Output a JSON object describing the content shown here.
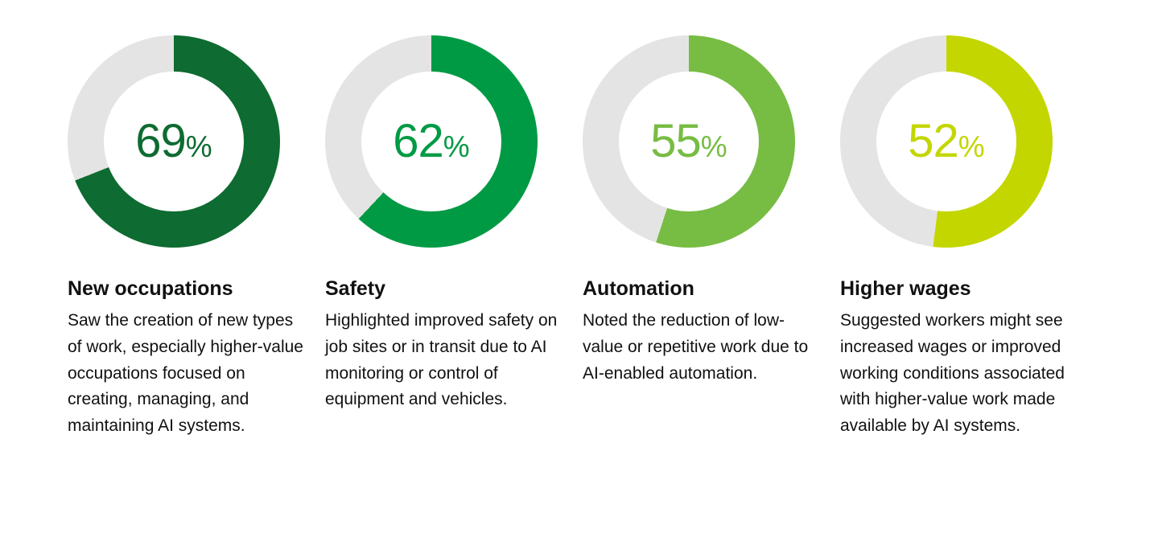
{
  "chart_data": {
    "type": "pie",
    "subtype": "donut",
    "start_angle_deg": 0,
    "direction": "clockwise",
    "track_color": "#E4E4E4",
    "legend_position": "none",
    "items": [
      {
        "label": "New occupations",
        "value": 69,
        "unit": "%",
        "color": "#0E6B31",
        "description": "Saw the creation of new types of work, especially higher-value occupations focused on creating, managing, and maintaining AI systems."
      },
      {
        "label": "Safety",
        "value": 62,
        "unit": "%",
        "color": "#009A44",
        "description": "Highlighted improved safety on job sites or in transit due to AI monitoring or control of equipment and vehicles."
      },
      {
        "label": "Automation",
        "value": 55,
        "unit": "%",
        "color": "#77BC43",
        "description": "Noted the reduction of low-value or repetitive work due to AI-enabled automation."
      },
      {
        "label": "Higher wages",
        "value": 52,
        "unit": "%",
        "color": "#C4D600",
        "description": "Suggested workers might see increased wages or improved working conditions associated with higher-value work made available by AI systems."
      }
    ]
  }
}
